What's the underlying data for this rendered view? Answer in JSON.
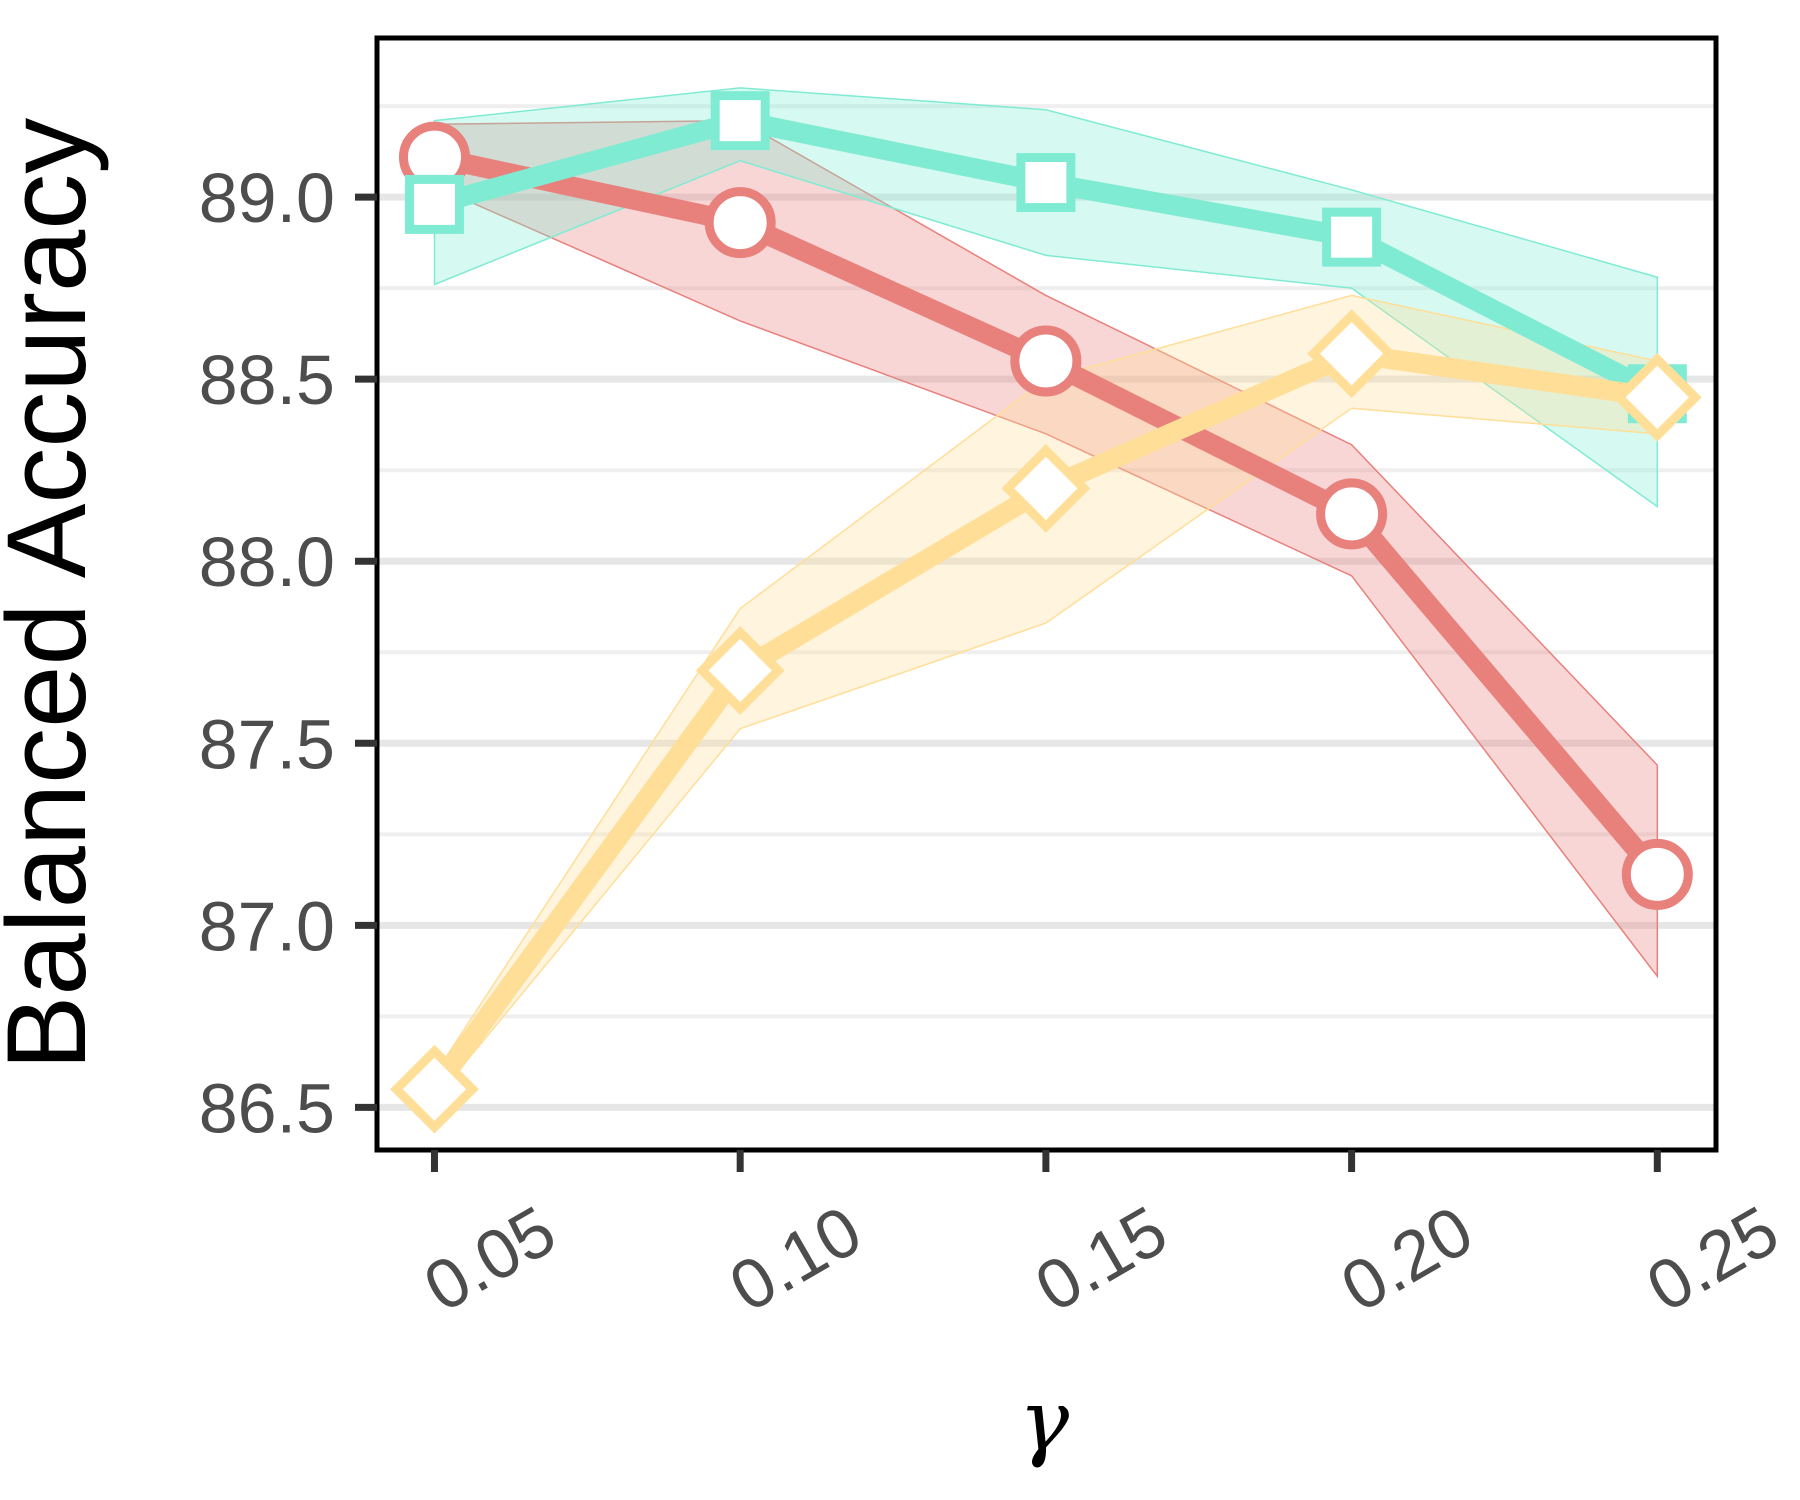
{
  "chart_data": {
    "type": "line",
    "title": "",
    "xlabel": "γ",
    "ylabel": "Balanced Accuracy",
    "x": [
      0.05,
      0.1,
      0.15,
      0.2,
      0.25
    ],
    "x_tick_labels": [
      "0.05",
      "0.10",
      "0.15",
      "0.20",
      "0.25"
    ],
    "y_ticks": [
      86.5,
      87.0,
      87.5,
      88.0,
      88.5,
      89.0
    ],
    "y_tick_labels": [
      "86.5",
      "87.0",
      "87.5",
      "88.0",
      "88.5",
      "89.0"
    ],
    "xlim": [
      0.0406,
      0.2596
    ],
    "ylim": [
      86.383,
      89.437
    ],
    "grid": "horizontal",
    "legend": "none",
    "series": [
      {
        "marker": "circle",
        "color": "#E8807C",
        "values": [
          89.11,
          88.93,
          88.55,
          88.13,
          87.14
        ],
        "upper": [
          89.2,
          89.21,
          88.73,
          88.32,
          87.44
        ],
        "lower": [
          89.03,
          88.66,
          88.35,
          87.96,
          86.86
        ]
      },
      {
        "marker": "square",
        "color": "#80EBD3",
        "values": [
          88.98,
          89.21,
          89.04,
          88.89,
          88.46
        ],
        "upper": [
          89.21,
          89.3,
          89.24,
          89.02,
          88.78
        ],
        "lower": [
          88.76,
          89.1,
          88.84,
          88.75,
          88.15
        ]
      },
      {
        "marker": "diamond",
        "color": "#FFDE97",
        "values": [
          86.55,
          87.7,
          88.2,
          88.57,
          88.45
        ],
        "upper": [
          86.59,
          87.87,
          88.5,
          88.73,
          88.55
        ],
        "lower": [
          86.52,
          87.54,
          87.83,
          88.42,
          88.35
        ]
      }
    ]
  }
}
